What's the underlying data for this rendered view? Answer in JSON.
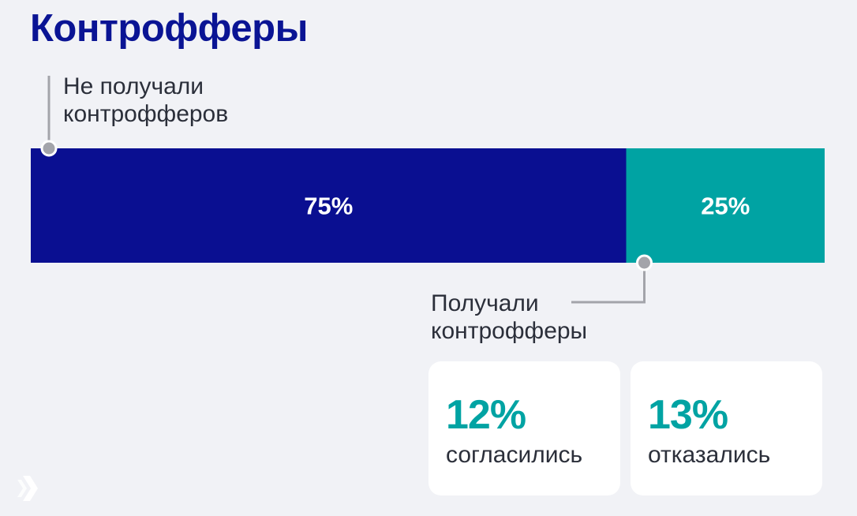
{
  "title": "Контрофферы",
  "colors": {
    "primary": "#0a0f91",
    "secondary": "#00a3a3",
    "title": "#0a1494",
    "connector": "#a3a4aa",
    "background": "#f1f2f6"
  },
  "labels": {
    "top": [
      "Не получали",
      "контрофферов"
    ],
    "bottom": [
      "Получали",
      "контрофферы"
    ]
  },
  "chart_data": {
    "type": "bar",
    "orientation": "horizontal-stacked",
    "title": "Контрофферы",
    "categories": [
      "Не получали контрофферов",
      "Получали контрофферы"
    ],
    "values": [
      75,
      25
    ],
    "value_labels": [
      "75%",
      "25%"
    ],
    "unit": "%",
    "xlim": [
      0,
      100
    ],
    "grid": false,
    "legend": "none",
    "breakdown": {
      "parent": "Получали контрофферы",
      "items": [
        {
          "value": 12,
          "value_label": "12%",
          "label": "согласились"
        },
        {
          "value": 13,
          "value_label": "13%",
          "label": "отказались"
        }
      ]
    }
  },
  "logo": "brand-logo-icon"
}
